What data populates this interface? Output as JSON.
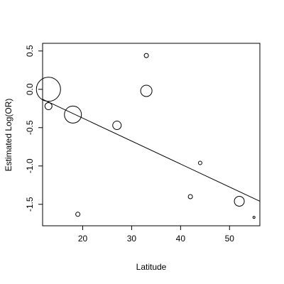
{
  "chart_data": {
    "type": "scatter",
    "title": "",
    "xlabel": "Latitude",
    "ylabel": "Estimated Log(OR)",
    "xlim": [
      11.8,
      56.2
    ],
    "ylim": [
      -1.78,
      0.6
    ],
    "x_ticks": [
      20,
      30,
      40,
      50
    ],
    "y_ticks": [
      -1.5,
      -1.0,
      -0.5,
      0.0,
      0.5
    ],
    "x_tick_labels": [
      "20",
      "30",
      "40",
      "50"
    ],
    "y_tick_labels": [
      "-1.5",
      "-1.0",
      "-0.5",
      "0.0",
      "0.5"
    ],
    "points": [
      {
        "x": 13,
        "y": 0.0,
        "weight": 17
      },
      {
        "x": 13,
        "y": -0.22,
        "weight": 5
      },
      {
        "x": 18,
        "y": -0.33,
        "weight": 12
      },
      {
        "x": 19,
        "y": -1.63,
        "weight": 3
      },
      {
        "x": 27,
        "y": -0.47,
        "weight": 6
      },
      {
        "x": 33,
        "y": -0.02,
        "weight": 8
      },
      {
        "x": 33,
        "y": 0.44,
        "weight": 3
      },
      {
        "x": 42,
        "y": -1.4,
        "weight": 3
      },
      {
        "x": 44,
        "y": -0.96,
        "weight": 2.5
      },
      {
        "x": 52,
        "y": -1.46,
        "weight": 7
      },
      {
        "x": 55,
        "y": -1.67,
        "weight": 1.5
      }
    ],
    "regression_line": {
      "x": [
        11.8,
        56.2
      ],
      "y": [
        -0.13,
        -1.46
      ]
    },
    "grid": false,
    "legend": "none"
  }
}
